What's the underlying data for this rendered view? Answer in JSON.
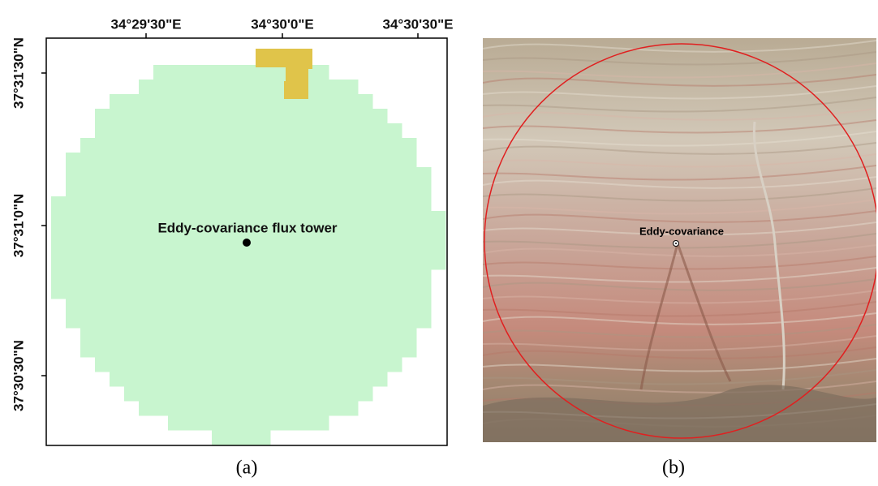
{
  "panel_a": {
    "longitude_labels": [
      "34°29'30\"E",
      "34°30'0\"E",
      "34°30'30\"E"
    ],
    "latitude_labels": [
      "37°31'30\"N",
      "37°31'0\"N",
      "37°30'30\"N"
    ],
    "tower_label": "Eddy-covariance flux tower",
    "caption": "(a)"
  },
  "panel_b": {
    "tower_label": "Eddy-covariance",
    "caption": "(b)"
  }
}
